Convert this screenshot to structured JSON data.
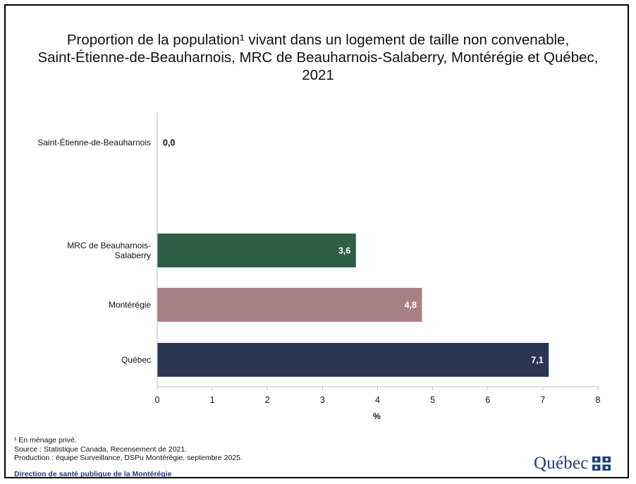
{
  "title_lines": [
    "Proportion de la population¹ vivant dans un logement de taille non convenable,",
    "Saint-Étienne-de-Beauharnois, MRC de Beauharnois-Salaberry, Montérégie et Québec,",
    "2021"
  ],
  "chart_data": {
    "type": "bar",
    "orientation": "horizontal",
    "categories": [
      "Saint-Étienne-de-Beauharnois",
      "MRC de Beauharnois-Salaberry",
      "Montérégie",
      "Québec"
    ],
    "category_label_lines": [
      [
        "Saint-Étienne-de-Beauharnois"
      ],
      [
        "MRC de Beauharnois-",
        "Salaberry"
      ],
      [
        "Montérégie"
      ],
      [
        "Québec"
      ]
    ],
    "values": [
      0.0,
      3.6,
      4.8,
      7.1
    ],
    "value_labels": [
      "0,0",
      "3,6",
      "4,8",
      "7,1"
    ],
    "bar_colors": [
      "#ffffff",
      "#2e5e45",
      "#a88084",
      "#2b3655"
    ],
    "xlabel": "%",
    "xlim": [
      0,
      8
    ],
    "xticks": [
      "0",
      "1",
      "2",
      "3",
      "4",
      "5",
      "6",
      "7",
      "8"
    ],
    "grid": false,
    "legend": "none"
  },
  "notes": [
    "¹ En ménage privé.",
    "Source : Statistique Canada, Recensement de 2021.",
    "Production : équipe Surveillance, DSPu Montérégie, septembre 2025."
  ],
  "organization": "Direction de santé publique de la Montérégie",
  "logo": {
    "text": "Québec",
    "icon": "fleurdelise-flag-icon",
    "color": "#1c3f7a"
  }
}
